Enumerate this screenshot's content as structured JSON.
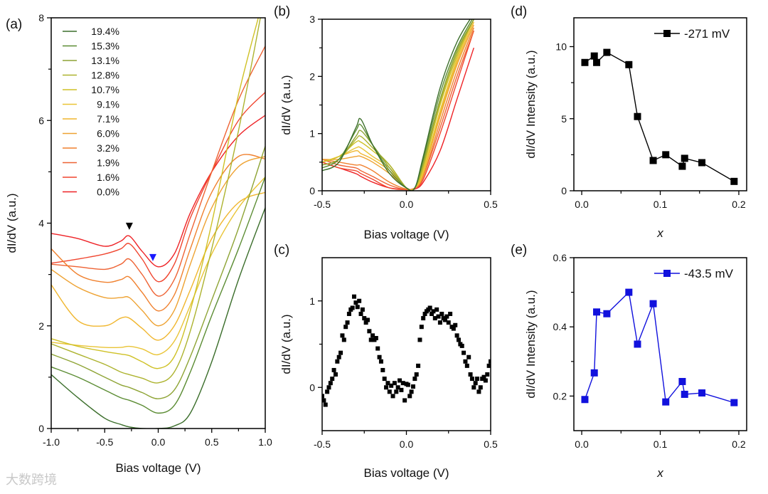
{
  "watermark": "大数跨境",
  "chart_data": [
    {
      "panel": "(a)",
      "type": "line",
      "xlabel": "Bias voltage (V)",
      "ylabel": "dI/dV (a.u.)",
      "xlim": [
        -1,
        1
      ],
      "ylim": [
        0,
        8
      ],
      "xticks": [
        -1.0,
        -0.5,
        0.0,
        0.5,
        1.0
      ],
      "xtick_labels": [
        "-1.0",
        "-0.5",
        "0.0",
        "0.5",
        "1.0"
      ],
      "yticks": [
        0,
        2,
        4,
        6,
        8
      ],
      "ytick_labels": [
        "0",
        "2",
        "4",
        "6",
        "8"
      ],
      "legend_position": "top-left",
      "x": [
        -1,
        -0.75,
        -0.5,
        -0.35,
        -0.27,
        -0.15,
        0,
        0.15,
        0.3,
        0.5,
        0.75,
        1
      ],
      "series": [
        {
          "name": "19.4%",
          "color": "#3b6e2b",
          "values": [
            1.05,
            0.6,
            0.2,
            0.08,
            0.03,
            0.0,
            0.0,
            0.05,
            0.3,
            1.3,
            2.9,
            4.3
          ]
        },
        {
          "name": "15.3%",
          "color": "#5b8c33",
          "values": [
            1.2,
            1.0,
            0.75,
            0.6,
            0.55,
            0.45,
            0.3,
            0.45,
            1.1,
            2.2,
            3.5,
            4.9
          ]
        },
        {
          "name": "13.1%",
          "color": "#8ea435",
          "values": [
            1.45,
            1.25,
            1.0,
            0.85,
            0.8,
            0.7,
            0.58,
            0.75,
            1.4,
            2.5,
            3.9,
            5.5
          ]
        },
        {
          "name": "12.8%",
          "color": "#adb32f",
          "values": [
            1.65,
            1.45,
            1.25,
            1.1,
            1.05,
            0.98,
            0.89,
            1.1,
            1.9,
            3.5,
            5.8,
            8.5
          ]
        },
        {
          "name": "10.7%",
          "color": "#cfc126",
          "values": [
            1.75,
            1.6,
            1.5,
            1.45,
            1.42,
            1.3,
            1.17,
            1.4,
            2.3,
            4.0,
            6.5,
            8.5
          ]
        },
        {
          "name": "9.1%",
          "color": "#e9c436",
          "values": [
            1.68,
            1.62,
            1.58,
            1.58,
            1.6,
            1.55,
            1.44,
            1.7,
            2.4,
            3.4,
            4.3,
            4.9
          ]
        },
        {
          "name": "7.1%",
          "color": "#f0b62e",
          "values": [
            2.8,
            2.1,
            2.0,
            2.15,
            2.15,
            1.95,
            1.72,
            2.0,
            2.7,
            3.7,
            4.4,
            4.6
          ]
        },
        {
          "name": "6.0%",
          "color": "#eea232",
          "values": [
            3.1,
            2.75,
            2.55,
            2.55,
            2.55,
            2.3,
            2.0,
            2.3,
            3.2,
            4.3,
            5.1,
            5.3
          ]
        },
        {
          "name": "3.2%",
          "color": "#f0812f",
          "values": [
            3.5,
            3.0,
            2.85,
            2.9,
            2.95,
            2.65,
            2.29,
            2.6,
            3.5,
            4.6,
            5.3,
            5.25
          ]
        },
        {
          "name": "1.9%",
          "color": "#ee6233",
          "values": [
            3.2,
            3.15,
            3.1,
            3.2,
            3.3,
            3.0,
            2.58,
            2.9,
            3.8,
            5.0,
            6.4,
            7.45
          ]
        },
        {
          "name": "1.6%",
          "color": "#f0452f",
          "values": [
            3.22,
            3.3,
            3.4,
            3.5,
            3.6,
            3.3,
            2.86,
            3.2,
            4.1,
            5.0,
            6.0,
            6.55
          ]
        },
        {
          "name": "0.0%",
          "color": "#ee2226",
          "values": [
            3.8,
            3.7,
            3.55,
            3.65,
            3.75,
            3.45,
            3.15,
            3.4,
            4.2,
            5.0,
            5.7,
            6.1
          ]
        }
      ],
      "annotations": [
        {
          "shape": "triangle-down",
          "color": "#000000",
          "x": -0.27,
          "y": 3.94
        },
        {
          "shape": "triangle-down",
          "color": "#1a1aff",
          "x": -0.05,
          "y": 3.33
        }
      ]
    },
    {
      "panel": "(b)",
      "type": "line",
      "xlabel": "Bias voltage (V)",
      "ylabel": "dI/dV (a.u.)",
      "xlim": [
        -0.5,
        0.5
      ],
      "ylim": [
        0,
        3
      ],
      "xticks": [
        -0.5,
        0,
        0.5
      ],
      "xtick_labels": [
        "-0.5",
        "0.0",
        "0.5"
      ],
      "yticks": [
        0,
        1,
        2,
        3
      ],
      "ytick_labels": [
        "0",
        "1",
        "2",
        "3"
      ],
      "x": [
        -0.5,
        -0.4,
        -0.3,
        -0.27,
        -0.2,
        -0.1,
        0,
        0.05,
        0.1,
        0.2,
        0.3,
        0.4
      ],
      "series": [
        {
          "name": "19.4%",
          "color": "#3b6e2b",
          "values": [
            0.35,
            0.5,
            1.1,
            1.25,
            0.8,
            0.3,
            0.05,
            0.05,
            0.6,
            1.8,
            2.6,
            3.1
          ]
        },
        {
          "name": "15.3%",
          "color": "#5b8c33",
          "values": [
            0.4,
            0.55,
            1.05,
            1.15,
            0.8,
            0.35,
            0.05,
            0.05,
            0.55,
            1.7,
            2.5,
            3.05
          ]
        },
        {
          "name": "13.1%",
          "color": "#8ea435",
          "values": [
            0.45,
            0.55,
            0.95,
            1.05,
            0.8,
            0.4,
            0.05,
            0.05,
            0.5,
            1.6,
            2.45,
            3.0
          ]
        },
        {
          "name": "12.8%",
          "color": "#adb32f",
          "values": [
            0.45,
            0.55,
            0.9,
            0.95,
            0.75,
            0.45,
            0.05,
            0.05,
            0.45,
            1.55,
            2.4,
            3.0
          ]
        },
        {
          "name": "10.7%",
          "color": "#cfc126",
          "values": [
            0.5,
            0.6,
            0.85,
            0.85,
            0.7,
            0.45,
            0.05,
            0.05,
            0.4,
            1.5,
            2.35,
            3.0
          ]
        },
        {
          "name": "9.1%",
          "color": "#e9c436",
          "values": [
            0.5,
            0.6,
            0.75,
            0.75,
            0.6,
            0.4,
            0.05,
            0.05,
            0.35,
            1.4,
            2.3,
            3.0
          ]
        },
        {
          "name": "7.1%",
          "color": "#f0b62e",
          "values": [
            0.5,
            0.6,
            0.7,
            0.65,
            0.55,
            0.35,
            0.05,
            0.05,
            0.3,
            1.35,
            2.25,
            2.95
          ]
        },
        {
          "name": "6.0%",
          "color": "#eea232",
          "values": [
            0.55,
            0.55,
            0.6,
            0.6,
            0.5,
            0.3,
            0.05,
            0.05,
            0.3,
            1.3,
            2.2,
            2.9
          ]
        },
        {
          "name": "3.2%",
          "color": "#f0812f",
          "values": [
            0.55,
            0.5,
            0.45,
            0.45,
            0.35,
            0.15,
            0.03,
            0.05,
            0.25,
            1.2,
            2.1,
            2.85
          ]
        },
        {
          "name": "1.9%",
          "color": "#ee6233",
          "values": [
            0.55,
            0.45,
            0.4,
            0.35,
            0.25,
            0.1,
            0.02,
            0.05,
            0.25,
            1.1,
            2.0,
            2.8
          ]
        },
        {
          "name": "1.6%",
          "color": "#f0452f",
          "values": [
            0.5,
            0.4,
            0.35,
            0.3,
            0.2,
            0.05,
            0.02,
            0.05,
            0.2,
            1.0,
            1.9,
            2.8
          ]
        },
        {
          "name": "0.0%",
          "color": "#ee2226",
          "values": [
            0.5,
            0.4,
            0.3,
            0.25,
            0.15,
            0.05,
            0.02,
            0.03,
            0.15,
            0.7,
            1.6,
            2.5
          ]
        }
      ]
    },
    {
      "panel": "(c)",
      "type": "scatter",
      "xlabel": "Bias voltage (V)",
      "ylabel": "dI/dV (a.u.)",
      "xlim": [
        -0.5,
        0.5
      ],
      "ylim": [
        -0.5,
        1.5
      ],
      "xticks": [
        -0.5,
        0,
        0.5
      ],
      "xtick_labels": [
        "-0.5",
        "0.0",
        "0.5"
      ],
      "yticks": [
        0,
        1
      ],
      "ytick_labels": [
        "0",
        "1"
      ],
      "color": "#000000",
      "x_start": -0.5,
      "x_step": 0.01,
      "values": [
        -0.1,
        -0.15,
        -0.2,
        -0.05,
        0.0,
        0.05,
        0.1,
        0.2,
        0.15,
        0.3,
        0.35,
        0.4,
        0.6,
        0.55,
        0.7,
        0.75,
        0.85,
        0.9,
        0.92,
        1.05,
        0.98,
        0.93,
        1.0,
        0.85,
        0.9,
        0.8,
        0.75,
        0.78,
        0.65,
        0.55,
        0.6,
        0.55,
        0.57,
        0.45,
        0.35,
        0.3,
        0.2,
        0.1,
        0.0,
        0.05,
        -0.05,
        0.02,
        -0.1,
        0.05,
        -0.05,
        0.0,
        0.08,
        -0.03,
        0.05,
        -0.15,
        0.04,
        0.03,
        -0.1,
        -0.05,
        0.01,
        0.1,
        0.15,
        0.25,
        0.55,
        0.7,
        0.8,
        0.85,
        0.88,
        0.9,
        0.92,
        0.85,
        0.88,
        0.8,
        0.9,
        0.82,
        0.75,
        0.85,
        0.8,
        0.78,
        0.82,
        0.75,
        0.85,
        0.7,
        0.68,
        0.72,
        0.6,
        0.55,
        0.5,
        0.48,
        0.4,
        0.3,
        0.25,
        0.35,
        0.15,
        0.1,
        0.0,
        0.05,
        0.1,
        -0.05,
        0.0,
        0.1,
        0.12,
        0.08,
        0.15,
        0.25,
        0.3
      ]
    },
    {
      "panel": "(d)",
      "type": "line",
      "xlabel": "x",
      "ylabel": "dI/dV Intensity (a.u.)",
      "xlim": [
        -0.01,
        0.21
      ],
      "ylim": [
        0,
        12
      ],
      "xticks": [
        0.0,
        0.1,
        0.2
      ],
      "xtick_labels": [
        "0.0",
        "0.1",
        "0.2"
      ],
      "yticks": [
        0,
        5,
        10
      ],
      "ytick_labels": [
        "0",
        "5",
        "10"
      ],
      "legend": "-271 mV",
      "legend_position": "top-right",
      "color": "#000000",
      "x": [
        0.004,
        0.016,
        0.019,
        0.032,
        0.06,
        0.071,
        0.091,
        0.107,
        0.128,
        0.131,
        0.153,
        0.194
      ],
      "values": [
        8.9,
        9.35,
        8.9,
        9.6,
        8.75,
        5.15,
        2.1,
        2.5,
        1.7,
        2.25,
        1.95,
        0.65
      ]
    },
    {
      "panel": "(e)",
      "type": "line",
      "xlabel": "x",
      "ylabel": "dI/dV Intensity (a.u.)",
      "xlim": [
        -0.01,
        0.21
      ],
      "ylim": [
        0.1,
        0.6
      ],
      "xticks": [
        0.0,
        0.1,
        0.2
      ],
      "xtick_labels": [
        "0.0",
        "0.1",
        "0.2"
      ],
      "yticks": [
        0.2,
        0.4,
        0.6
      ],
      "ytick_labels": [
        "0.2",
        "0.4",
        "0.6"
      ],
      "legend": "-43.5 mV",
      "legend_position": "top-right",
      "color": "#1111dd",
      "x": [
        0.004,
        0.016,
        0.019,
        0.032,
        0.06,
        0.071,
        0.091,
        0.107,
        0.128,
        0.131,
        0.153,
        0.194
      ],
      "values": [
        0.19,
        0.267,
        0.443,
        0.438,
        0.5,
        0.35,
        0.467,
        0.183,
        0.242,
        0.205,
        0.209,
        0.181
      ]
    }
  ]
}
